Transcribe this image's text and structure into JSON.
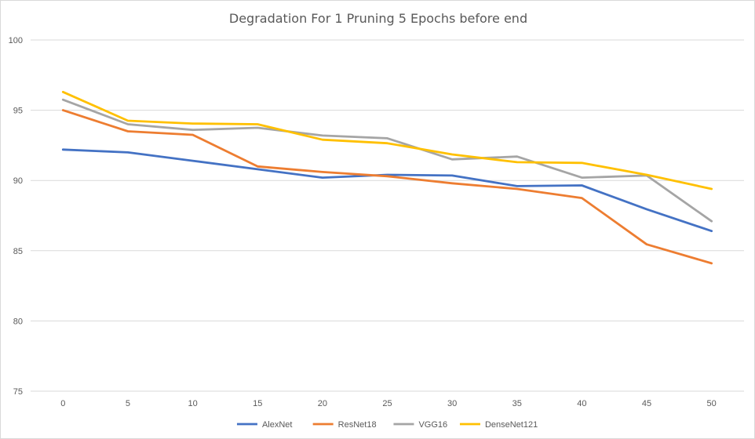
{
  "chart_data": {
    "type": "line",
    "title": "Degradation For 1 Pruning 5 Epochs before end",
    "xlabel": "",
    "ylabel": "",
    "categories": [
      "0",
      "5",
      "10",
      "15",
      "20",
      "25",
      "30",
      "35",
      "40",
      "45",
      "50"
    ],
    "ylim": [
      75,
      100
    ],
    "yticks": [
      75,
      80,
      85,
      90,
      95,
      100
    ],
    "grid": true,
    "legend_position": "bottom",
    "series": [
      {
        "name": "AlexNet",
        "color": "#4472c4",
        "values": [
          92.2,
          92.0,
          91.4,
          90.8,
          90.2,
          90.4,
          90.35,
          89.6,
          89.65,
          87.95,
          86.4
        ]
      },
      {
        "name": "ResNet18",
        "color": "#ed7d31",
        "values": [
          95.0,
          93.5,
          93.25,
          91.0,
          90.6,
          90.3,
          89.8,
          89.4,
          88.75,
          85.45,
          84.1
        ]
      },
      {
        "name": "VGG16",
        "color": "#a5a5a5",
        "values": [
          95.75,
          94.0,
          93.6,
          93.75,
          93.2,
          93.0,
          91.5,
          91.7,
          90.2,
          90.35,
          87.1
        ]
      },
      {
        "name": "DenseNet121",
        "color": "#ffc000",
        "values": [
          96.3,
          94.25,
          94.05,
          94.0,
          92.9,
          92.65,
          91.85,
          91.3,
          91.25,
          90.4,
          89.4
        ]
      }
    ]
  }
}
